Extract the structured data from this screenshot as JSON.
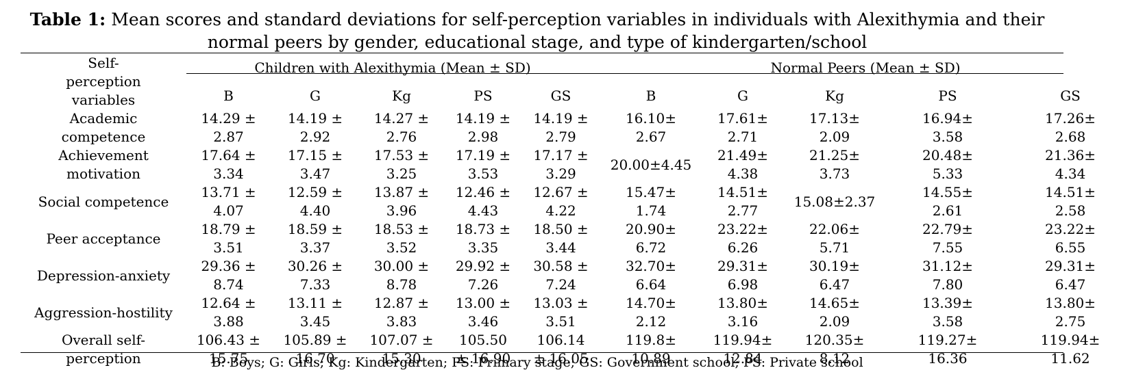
{
  "title": {
    "label": "Table 1:",
    "text": " Mean scores and standard deviations for self-perception variables in individuals with Alexithymia and their normal peers by gender, educational stage, and type of kindergarten/school"
  },
  "header": {
    "row_label": "Self-perception variables",
    "group_alexithymia": "Children with Alexithymia (Mean ± SD)",
    "group_normal": "Normal Peers (Mean ± SD)",
    "subcolumns": [
      "B",
      "G",
      "Kg",
      "PS",
      "GS",
      "B",
      "G",
      "Kg",
      "PS",
      "GS"
    ]
  },
  "rows": [
    {
      "label": "Academic\ncompetence",
      "values": [
        "14.29 ±\n2.87",
        "14.19 ±\n2.92",
        "14.27 ±\n2.76",
        "14.19 ±\n2.98",
        "14.19 ±\n2.79",
        "16.10±\n2.67",
        "17.61±\n2.71",
        "17.13±\n2.09",
        "16.94±\n3.58",
        "17.26±\n2.68"
      ]
    },
    {
      "label": "Achievement\nmotivation",
      "values": [
        "17.64 ±\n3.34",
        "17.15 ±\n3.47",
        "17.53 ±\n3.25",
        "17.19 ±\n3.53",
        "17.17 ±\n3.29",
        "20.00±4.45",
        "21.49±\n4.38",
        "21.25±\n3.73",
        "20.48±\n5.33",
        "21.36±\n4.34"
      ]
    },
    {
      "label": "Social competence",
      "values": [
        "13.71 ±\n4.07",
        "12.59 ±\n4.40",
        "13.87 ±\n3.96",
        "12.46 ±\n4.43",
        "12.67 ±\n4.22",
        "15.47±\n1.74",
        "14.51±\n2.77",
        "15.08±2.37",
        "14.55±\n2.61",
        "14.51±\n2.58"
      ]
    },
    {
      "label": "Peer acceptance",
      "values": [
        "18.79 ±\n3.51",
        "18.59 ±\n3.37",
        "18.53 ±\n3.52",
        "18.73 ±\n3.35",
        "18.50 ±\n3.44",
        "20.90±\n6.72",
        "23.22±\n6.26",
        "22.06±\n5.71",
        "22.79±\n7.55",
        "23.22±\n6.55"
      ]
    },
    {
      "label": "Depression-anxiety",
      "values": [
        "29.36 ±\n8.74",
        "30.26 ±\n7.33",
        "30.00 ±\n8.78",
        "29.92 ±\n7.26",
        "30.58 ±\n7.24",
        "32.70±\n6.64",
        "29.31±\n6.98",
        "30.19±\n6.47",
        "31.12±\n7.80",
        "29.31±\n6.47"
      ]
    },
    {
      "label": "Aggression-hostility",
      "values": [
        "12.64 ±\n3.88",
        "13.11 ±\n3.45",
        "12.87 ±\n3.83",
        "13.00 ±\n3.46",
        "13.03 ±\n3.51",
        "14.70±\n2.12",
        "13.80±\n3.16",
        "14.65±\n2.09",
        "13.39±\n3.58",
        "13.80±\n2.75"
      ]
    },
    {
      "label": "Overall self-\nperception",
      "values": [
        "106.43 ±\n15.75",
        "105.89 ±\n16.70",
        "107.07 ±\n15.30",
        "105.50\n± 16.90",
        "106.14\n± 16.05",
        "119.8±\n10.89",
        "119.94±\n12.84",
        "120.35±\n8.12",
        "119.27±\n16.36",
        "119.94±\n11.62"
      ]
    }
  ],
  "footnote": "B: Boys; G: Girls; Kg: Kindergarten; PS: Primary stage; GS: Government school; PS: Private school"
}
